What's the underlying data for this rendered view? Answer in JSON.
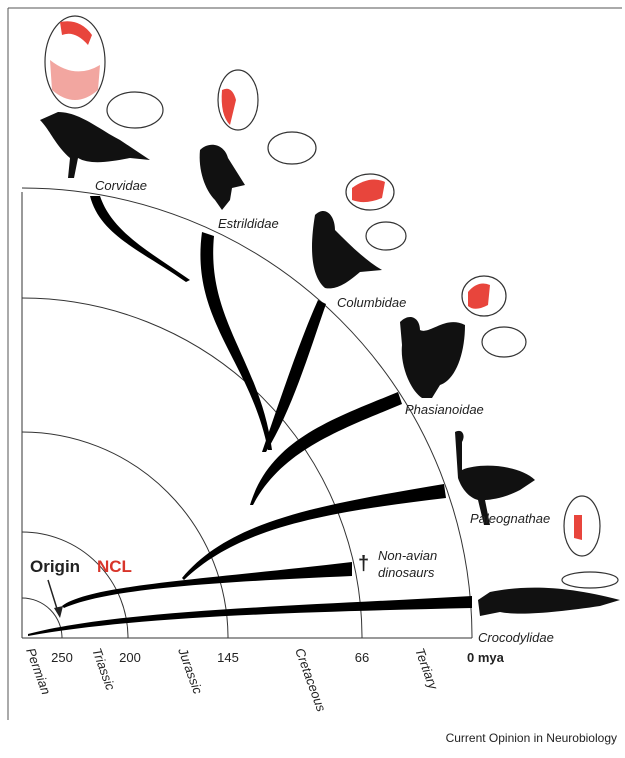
{
  "origin": {
    "word": "Origin",
    "region": "NCL"
  },
  "taxa": [
    {
      "label": "Corvidae"
    },
    {
      "label": "Estrildidae"
    },
    {
      "label": "Columbidae"
    },
    {
      "label": "Phasianoidae"
    },
    {
      "label": "Paleognathae"
    },
    {
      "label": "Crocodylidae"
    }
  ],
  "extinct": {
    "mark": "†",
    "lines": [
      "Non-avian",
      "dinosaurs"
    ]
  },
  "periods": [
    "Permian",
    "Triassic",
    "Jurassic",
    "Cretaceous",
    "Tertiary"
  ],
  "times": [
    "250",
    "200",
    "145",
    "66",
    "0 mya"
  ],
  "caption": "Current Opinion in Neurobiology"
}
